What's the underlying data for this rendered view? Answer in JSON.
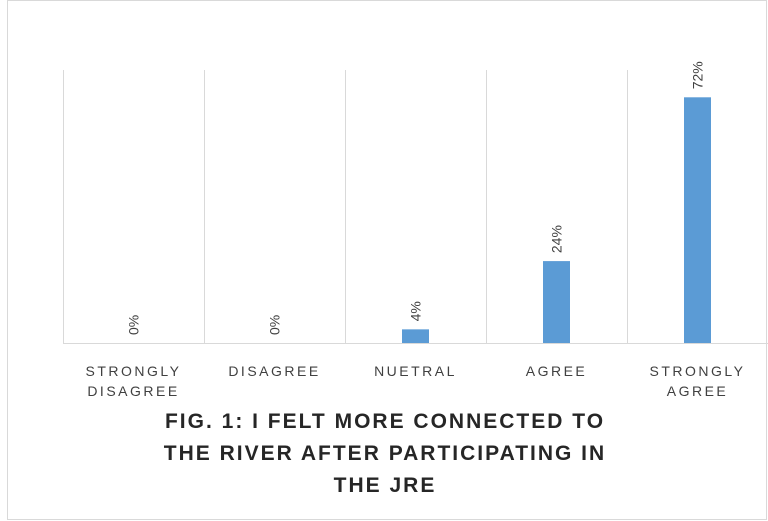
{
  "chart_data": {
    "type": "bar",
    "title": "FIG. 1: I FELT MORE CONNECTED TO THE RIVER AFTER PARTICIPATING IN THE JRE",
    "title_lines": [
      "FIG. 1: I FELT MORE CONNECTED TO",
      "THE RIVER AFTER PARTICIPATING IN",
      "THE JRE"
    ],
    "categories": [
      "STRONGLY DISAGREE",
      "DISAGREE",
      "NUETRAL",
      "AGREE",
      "STRONGLY AGREE"
    ],
    "category_lines": [
      [
        "STRONGLY",
        "DISAGREE"
      ],
      [
        "DISAGREE"
      ],
      [
        "NUETRAL"
      ],
      [
        "AGREE"
      ],
      [
        "STRONGLY",
        "AGREE"
      ]
    ],
    "values": [
      0,
      0,
      4,
      24,
      72
    ],
    "data_labels": [
      "0%",
      "0%",
      "4%",
      "24%",
      "72%"
    ],
    "ylabel": "",
    "xlabel": "",
    "ylim": [
      0,
      80
    ],
    "grid": "vertical separators",
    "legend": "none",
    "bar_color": "#5B9BD5",
    "grid_color": "#D9D9D9",
    "text_color": "#404040"
  }
}
